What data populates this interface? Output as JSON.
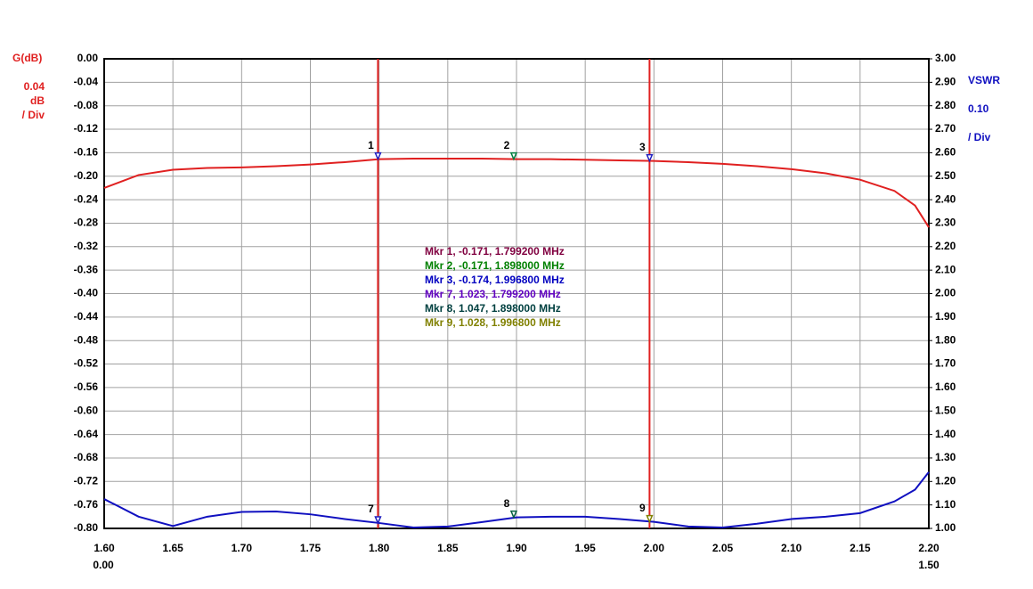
{
  "chart_data": {
    "type": "line",
    "y_axis_title": "G(dB)",
    "y_scale_lines": [
      "0.04",
      "dB",
      "/ Div"
    ],
    "y2_axis_title": "VSWR",
    "y2_scale_lines": [
      "0.10",
      "/ Div"
    ],
    "x_start_sublabel": "0.00",
    "x_end_sublabel": "1.50",
    "grid": true,
    "xlim": [
      1.6,
      2.2
    ],
    "xticks": [
      {
        "value": 1.6,
        "label": "1.60"
      },
      {
        "value": 1.65,
        "label": "1.65"
      },
      {
        "value": 1.7,
        "label": "1.70"
      },
      {
        "value": 1.75,
        "label": "1.75"
      },
      {
        "value": 1.8,
        "label": "1.80"
      },
      {
        "value": 1.85,
        "label": "1.85"
      },
      {
        "value": 1.9,
        "label": "1.90"
      },
      {
        "value": 1.95,
        "label": "1.95"
      },
      {
        "value": 2.0,
        "label": "2.00"
      },
      {
        "value": 2.05,
        "label": "2.05"
      },
      {
        "value": 2.1,
        "label": "2.10"
      },
      {
        "value": 2.15,
        "label": "2.15"
      },
      {
        "value": 2.2,
        "label": "2.20"
      }
    ],
    "ylim": [
      -0.8,
      0
    ],
    "yticks": [
      {
        "value": 0,
        "label": "0.00"
      },
      {
        "value": -0.04,
        "label": "-0.04"
      },
      {
        "value": -0.08,
        "label": "-0.08"
      },
      {
        "value": -0.12,
        "label": "-0.12"
      },
      {
        "value": -0.16,
        "label": "-0.16"
      },
      {
        "value": -0.2,
        "label": "-0.20"
      },
      {
        "value": -0.24,
        "label": "-0.24"
      },
      {
        "value": -0.28,
        "label": "-0.28"
      },
      {
        "value": -0.32,
        "label": "-0.32"
      },
      {
        "value": -0.36,
        "label": "-0.36"
      },
      {
        "value": -0.4,
        "label": "-0.40"
      },
      {
        "value": -0.44,
        "label": "-0.44"
      },
      {
        "value": -0.48,
        "label": "-0.48"
      },
      {
        "value": -0.52,
        "label": "-0.52"
      },
      {
        "value": -0.56,
        "label": "-0.56"
      },
      {
        "value": -0.6,
        "label": "-0.60"
      },
      {
        "value": -0.64,
        "label": "-0.64"
      },
      {
        "value": -0.68,
        "label": "-0.68"
      },
      {
        "value": -0.72,
        "label": "-0.72"
      },
      {
        "value": -0.76,
        "label": "-0.76"
      },
      {
        "value": -0.8,
        "label": "-0.80"
      }
    ],
    "y2lim": [
      1,
      3
    ],
    "y2ticks": [
      {
        "value": 3,
        "label": "3.00"
      },
      {
        "value": 2.9,
        "label": "2.90"
      },
      {
        "value": 2.8,
        "label": "2.80"
      },
      {
        "value": 2.7,
        "label": "2.70"
      },
      {
        "value": 2.6,
        "label": "2.60"
      },
      {
        "value": 2.5,
        "label": "2.50"
      },
      {
        "value": 2.4,
        "label": "2.40"
      },
      {
        "value": 2.3,
        "label": "2.30"
      },
      {
        "value": 2.2,
        "label": "2.20"
      },
      {
        "value": 2.1,
        "label": "2.10"
      },
      {
        "value": 2,
        "label": "2.00"
      },
      {
        "value": 1.9,
        "label": "1.90"
      },
      {
        "value": 1.8,
        "label": "1.80"
      },
      {
        "value": 1.7,
        "label": "1.70"
      },
      {
        "value": 1.6,
        "label": "1.60"
      },
      {
        "value": 1.5,
        "label": "1.50"
      },
      {
        "value": 1.4,
        "label": "1.40"
      },
      {
        "value": 1.3,
        "label": "1.30"
      },
      {
        "value": 1.2,
        "label": "1.20"
      },
      {
        "value": 1.1,
        "label": "1.10"
      },
      {
        "value": 1,
        "label": "1.00"
      }
    ],
    "x": [
      1.6,
      1.625,
      1.65,
      1.675,
      1.7,
      1.725,
      1.75,
      1.775,
      1.8,
      1.825,
      1.85,
      1.875,
      1.9,
      1.925,
      1.95,
      1.975,
      2.0,
      2.025,
      2.05,
      2.075,
      2.1,
      2.125,
      2.15,
      2.175,
      2.19,
      2.2
    ],
    "series": [
      {
        "name": "G(dB)",
        "color": "#e02020",
        "values": [
          -0.22,
          -0.198,
          -0.189,
          -0.186,
          -0.185,
          -0.183,
          -0.18,
          -0.176,
          -0.171,
          -0.17,
          -0.17,
          -0.17,
          -0.171,
          -0.171,
          -0.172,
          -0.173,
          -0.174,
          -0.176,
          -0.179,
          -0.183,
          -0.188,
          -0.195,
          -0.206,
          -0.225,
          -0.25,
          -0.287
        ]
      },
      {
        "name": "VSWR",
        "color": "#1010c0",
        "axis": "y2",
        "values": [
          1.125,
          1.05,
          1.01,
          1.05,
          1.07,
          1.072,
          1.06,
          1.04,
          1.023,
          1.004,
          1.008,
          1.027,
          1.047,
          1.05,
          1.05,
          1.04,
          1.028,
          1.008,
          1.004,
          1.02,
          1.04,
          1.05,
          1.065,
          1.115,
          1.165,
          1.24
        ]
      }
    ],
    "markers": [
      {
        "label": "1",
        "x": 1.7992,
        "value": -0.171,
        "color": "#2020c0",
        "line": true
      },
      {
        "label": "2",
        "x": 1.898,
        "value": -0.171,
        "color": "#008040",
        "line": false
      },
      {
        "label": "3",
        "x": 1.9968,
        "value": -0.174,
        "color": "#2020c0",
        "line": true
      },
      {
        "label": "7",
        "x": 1.7992,
        "value": 1.023,
        "color": "#2020c0",
        "axis": "y2",
        "line": false
      },
      {
        "label": "8",
        "x": 1.898,
        "value": 1.047,
        "color": "#006040",
        "axis": "y2",
        "line": false
      },
      {
        "label": "9",
        "x": 1.9968,
        "value": 1.028,
        "color": "#808000",
        "axis": "y2",
        "line": false
      }
    ],
    "marker_readouts": [
      {
        "text": "Mkr 1, -0.171, 1.799200 MHz",
        "color": "#800040"
      },
      {
        "text": "Mkr 2, -0.171, 1.898000 MHz",
        "color": "#008000"
      },
      {
        "text": "Mkr 3, -0.174, 1.996800 MHz",
        "color": "#0000c0"
      },
      {
        "text": "Mkr 7, 1.023, 1.799200 MHz",
        "color": "#6000c0"
      },
      {
        "text": "Mkr 8, 1.047, 1.898000 MHz",
        "color": "#004040"
      },
      {
        "text": "Mkr 9, 1.028, 1.996800 MHz",
        "color": "#808000"
      }
    ]
  }
}
